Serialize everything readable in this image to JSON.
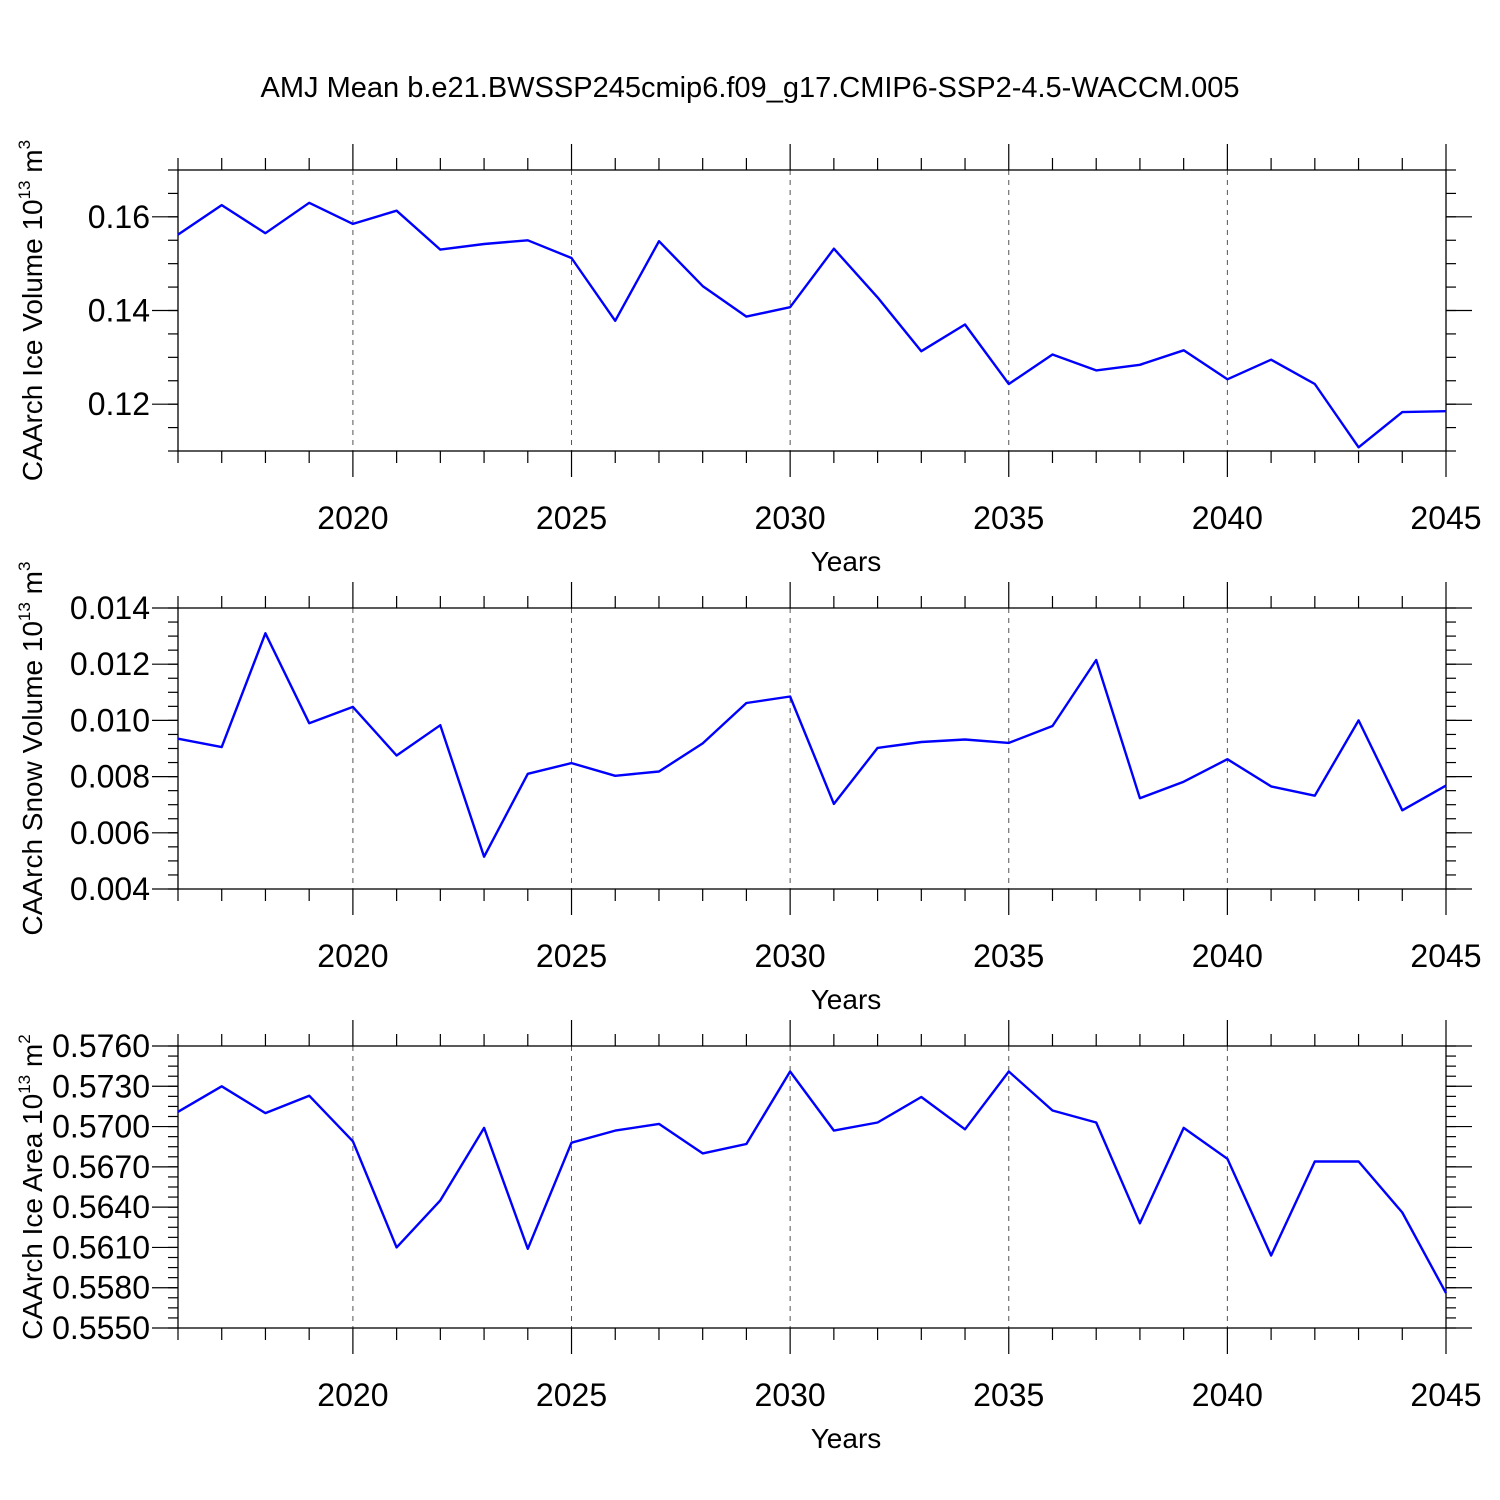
{
  "title": "AMJ Mean b.e21.BWSSP245cmip6.f09_g17.CMIP6-SSP2-4.5-WACCM.005",
  "colors": {
    "series": "#0000ff",
    "axes": "#000000",
    "grid": "#555555"
  },
  "chart_data": [
    {
      "type": "line",
      "ylabel": {
        "main": "CAArch Ice Volume 10",
        "sup1": "13",
        "unit": " m",
        "sup2": "3"
      },
      "xlabel": "Years",
      "xlim": [
        2016,
        2045
      ],
      "ylim": [
        0.11,
        0.17
      ],
      "xticks": [
        2020,
        2025,
        2030,
        2035,
        2040,
        2045
      ],
      "yticks": [
        0.12,
        0.14,
        0.16
      ],
      "ytick_labels": [
        "0.12",
        "0.14",
        "0.16"
      ],
      "grid": "dashed vertical at major x ticks",
      "x": [
        2016,
        2017,
        2018,
        2019,
        2020,
        2021,
        2022,
        2023,
        2024,
        2025,
        2026,
        2027,
        2028,
        2029,
        2030,
        2031,
        2032,
        2033,
        2034,
        2035,
        2036,
        2037,
        2038,
        2039,
        2040,
        2041,
        2042,
        2043,
        2044,
        2045
      ],
      "y": [
        0.1562,
        0.1625,
        0.1565,
        0.163,
        0.1585,
        0.1613,
        0.153,
        0.1542,
        0.155,
        0.1512,
        0.1378,
        0.1548,
        0.1452,
        0.1387,
        0.1407,
        0.1532,
        0.1428,
        0.1313,
        0.137,
        0.1243,
        0.1306,
        0.1272,
        0.1284,
        0.1315,
        0.1253,
        0.1295,
        0.1243,
        0.1108,
        0.1183,
        0.1185
      ]
    },
    {
      "type": "line",
      "ylabel": {
        "main": "CAArch Snow Volume 10",
        "sup1": "13",
        "unit": " m",
        "sup2": "3"
      },
      "xlabel": "Years",
      "xlim": [
        2016,
        2045
      ],
      "ylim": [
        0.004,
        0.014
      ],
      "xticks": [
        2020,
        2025,
        2030,
        2035,
        2040,
        2045
      ],
      "yticks": [
        0.004,
        0.006,
        0.008,
        0.01,
        0.012,
        0.014
      ],
      "ytick_labels": [
        "0.004",
        "0.006",
        "0.008",
        "0.010",
        "0.012",
        "0.014"
      ],
      "grid": "dashed vertical at major x ticks",
      "x": [
        2016,
        2017,
        2018,
        2019,
        2020,
        2021,
        2022,
        2023,
        2024,
        2025,
        2026,
        2027,
        2028,
        2029,
        2030,
        2031,
        2032,
        2033,
        2034,
        2035,
        2036,
        2037,
        2038,
        2039,
        2040,
        2041,
        2042,
        2043,
        2044,
        2045
      ],
      "y": [
        0.00935,
        0.00905,
        0.0131,
        0.0099,
        0.01048,
        0.00875,
        0.00983,
        0.00515,
        0.0081,
        0.00848,
        0.00803,
        0.00818,
        0.00918,
        0.01062,
        0.01085,
        0.00703,
        0.00902,
        0.00923,
        0.00932,
        0.0092,
        0.0098,
        0.01215,
        0.00723,
        0.00782,
        0.00862,
        0.00765,
        0.00732,
        0.01,
        0.0068,
        0.00768
      ]
    },
    {
      "type": "line",
      "ylabel": {
        "main": "CAArch Ice Area 10",
        "sup1": "13",
        "unit": " m",
        "sup2": "2"
      },
      "xlabel": "Years",
      "xlim": [
        2016,
        2045
      ],
      "ylim": [
        0.555,
        0.576
      ],
      "xticks": [
        2020,
        2025,
        2030,
        2035,
        2040,
        2045
      ],
      "yticks": [
        0.555,
        0.558,
        0.561,
        0.564,
        0.567,
        0.57,
        0.573,
        0.576
      ],
      "ytick_labels": [
        "0.5550",
        "0.5580",
        "0.5610",
        "0.5640",
        "0.5670",
        "0.5700",
        "0.5730",
        "0.5760"
      ],
      "grid": "dashed vertical at major x ticks",
      "x": [
        2016,
        2017,
        2018,
        2019,
        2020,
        2021,
        2022,
        2023,
        2024,
        2025,
        2026,
        2027,
        2028,
        2029,
        2030,
        2031,
        2032,
        2033,
        2034,
        2035,
        2036,
        2037,
        2038,
        2039,
        2040,
        2041,
        2042,
        2043,
        2044,
        2045
      ],
      "y": [
        0.5711,
        0.573,
        0.571,
        0.5723,
        0.5689,
        0.561,
        0.5645,
        0.5699,
        0.5609,
        0.5688,
        0.5697,
        0.5702,
        0.568,
        0.5687,
        0.5741,
        0.5697,
        0.5703,
        0.5722,
        0.5698,
        0.5741,
        0.5712,
        0.5703,
        0.5628,
        0.5699,
        0.5676,
        0.5604,
        0.5674,
        0.5674,
        0.5636,
        0.5576
      ]
    }
  ]
}
